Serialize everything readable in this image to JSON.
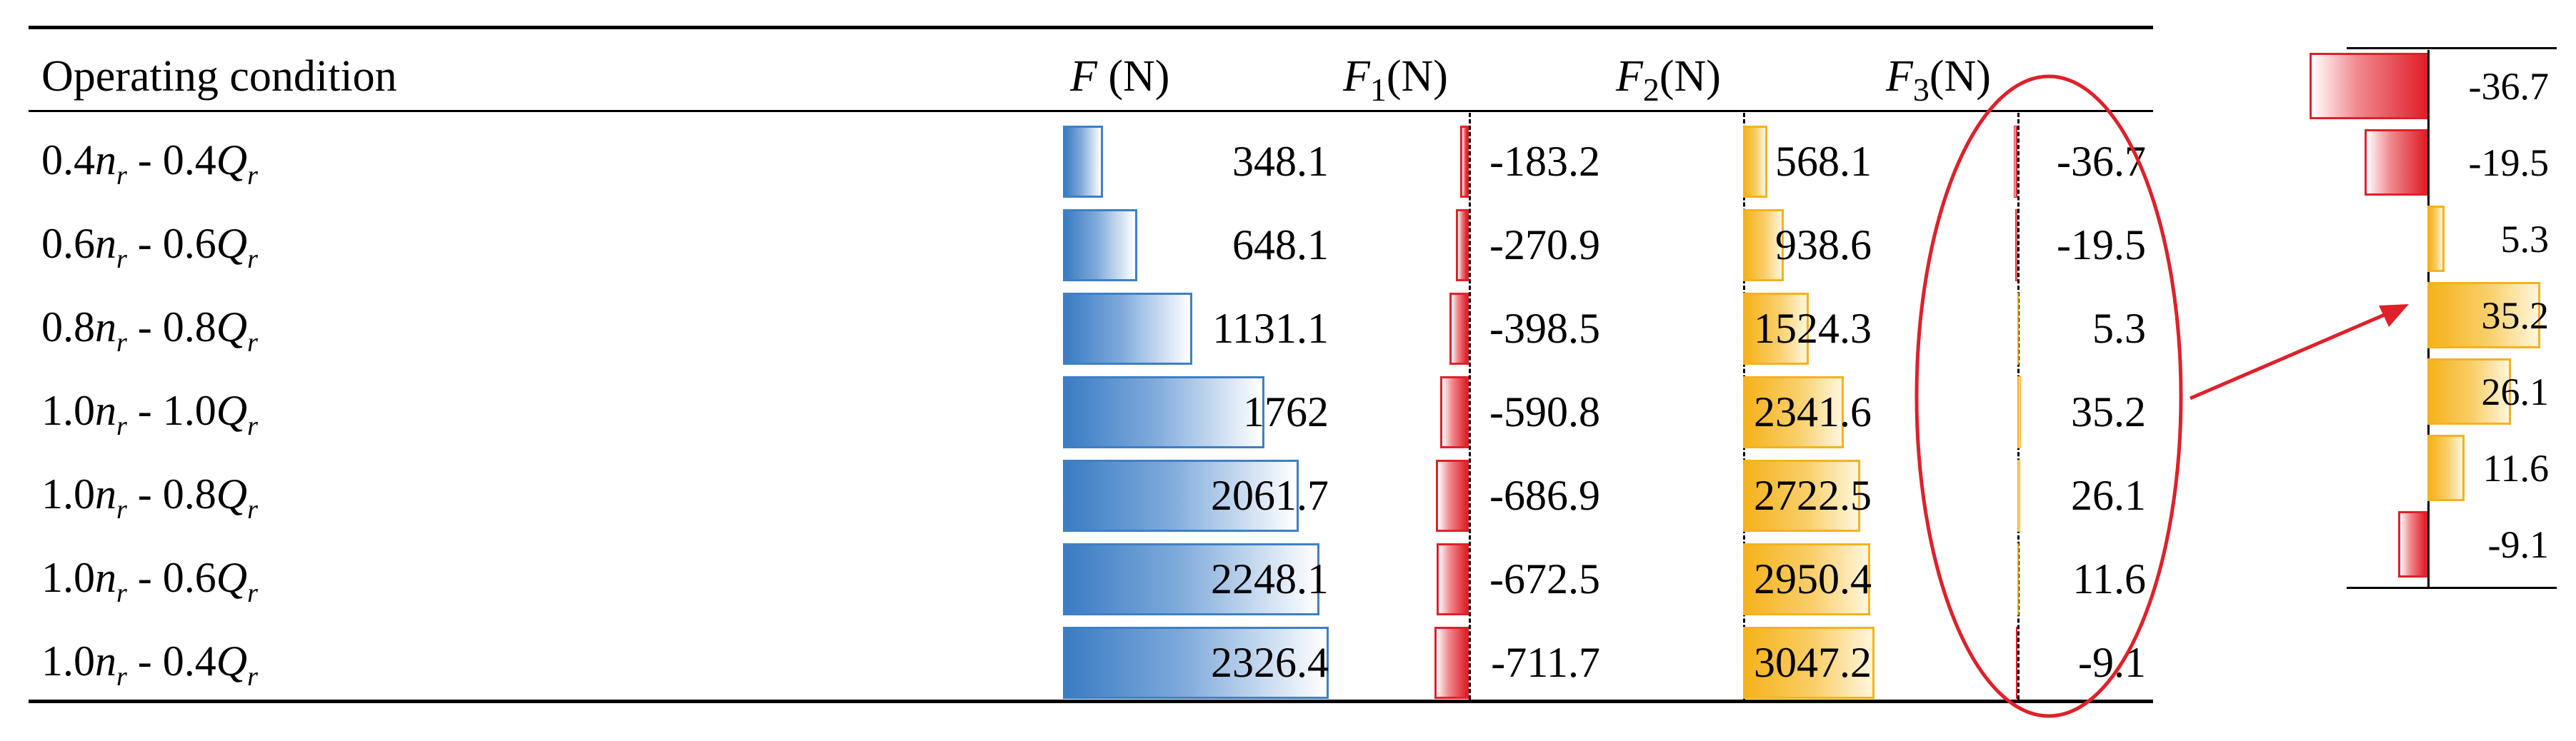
{
  "table": {
    "header": {
      "condition": "Operating condition",
      "F": {
        "sym": "F",
        "unit": "(N)"
      },
      "F1": {
        "sym": "F",
        "sub": "1",
        "unit": "(N)"
      },
      "F2": {
        "sym": "F",
        "sub": "2",
        "unit": "(N)"
      },
      "F3": {
        "sym": "F",
        "sub": "3",
        "unit": "(N)"
      }
    },
    "rows": [
      {
        "a": "0.4",
        "b": "0.4",
        "F": "348.1",
        "F1": "-183.2",
        "F2": "568.1",
        "F3": "-36.7"
      },
      {
        "a": "0.6",
        "b": "0.6",
        "F": "648.1",
        "F1": "-270.9",
        "F2": "938.6",
        "F3": "-19.5"
      },
      {
        "a": "0.8",
        "b": "0.8",
        "F": "1131.1",
        "F1": "-398.5",
        "F2": "1524.3",
        "F3": "5.3"
      },
      {
        "a": "1.0",
        "b": "1.0",
        "F": "1762",
        "F1": "-590.8",
        "F2": "2341.6",
        "F3": "35.2"
      },
      {
        "a": "1.0",
        "b": "0.8",
        "F": "2061.7",
        "F1": "-686.9",
        "F2": "2722.5",
        "F3": "26.1"
      },
      {
        "a": "1.0",
        "b": "0.6",
        "F": "2248.1",
        "F1": "-672.5",
        "F2": "2950.4",
        "F3": "11.6"
      },
      {
        "a": "1.0",
        "b": "0.4",
        "F": "2326.4",
        "F1": "-711.7",
        "F2": "3047.2",
        "F3": "-9.1"
      }
    ],
    "symbols": {
      "n": "n",
      "Q": "Q",
      "r": "r",
      "sep": " - "
    },
    "values": {
      "F": [
        348.1,
        648.1,
        1131.1,
        1762,
        2061.7,
        2248.1,
        2326.4
      ],
      "F1": [
        -183.2,
        -270.9,
        -398.5,
        -590.8,
        -686.9,
        -672.5,
        -711.7
      ],
      "F2": [
        568.1,
        938.6,
        1524.3,
        2341.6,
        2722.5,
        2950.4,
        3047.2
      ],
      "F3": [
        -36.7,
        -19.5,
        5.3,
        35.2,
        26.1,
        11.6,
        -9.1
      ]
    }
  },
  "zoom": {
    "labels": [
      "-36.7",
      "-19.5",
      "5.3",
      "35.2",
      "26.1",
      "11.6",
      "-9.1"
    ],
    "values": [
      -36.7,
      -19.5,
      5.3,
      35.2,
      26.1,
      11.6,
      -9.1
    ]
  },
  "colors": {
    "positive_blue": "#3f7fc6",
    "negative_red": "#e0202a",
    "positive_orange": "#f5b21c",
    "highlight": "#e0202a"
  }
}
